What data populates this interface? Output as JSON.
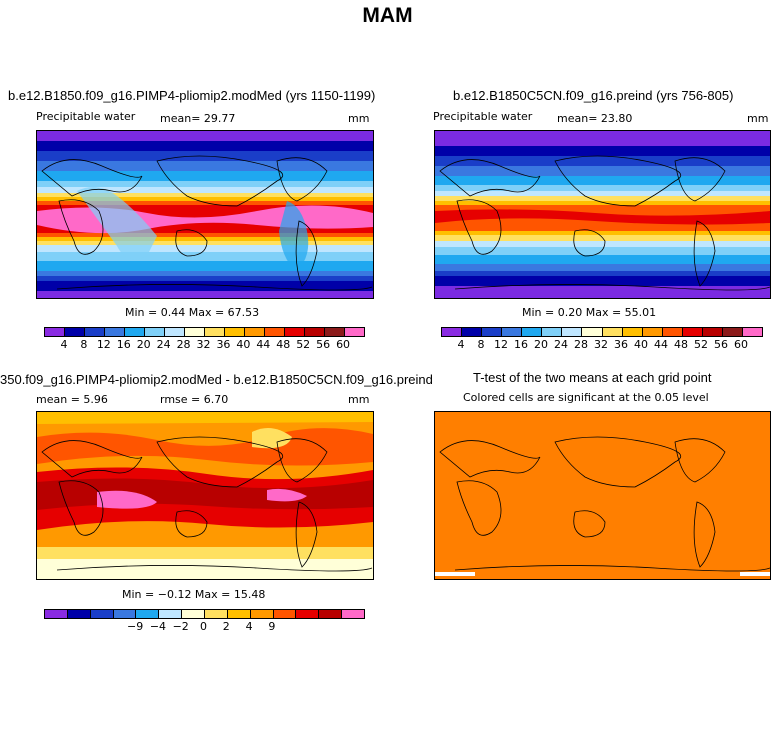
{
  "title": "MAM",
  "panels": {
    "top_left": {
      "title": "b.e12.B1850.f09_g16.PIMP4-pliomip2.modMed (yrs 1150-1199)",
      "variable": "Precipitable water",
      "mean": "mean=  29.77",
      "units": "mm",
      "minmax": "Min =    0.44  Max =   67.53"
    },
    "top_right": {
      "title": "b.e12.B1850C5CN.f09_g16.preind (yrs 756-805)",
      "variable": "Precipitable water",
      "mean": "mean=  23.80",
      "units": "mm",
      "minmax": "Min =    0.20  Max =   55.01"
    },
    "bottom_left": {
      "title": "350.f09_g16.PIMP4-pliomip2.modMed - b.e12.B1850C5CN.f09_g16.preind",
      "mean": "mean  =    5.96",
      "rmse": "rmse  =    6.70",
      "units": "mm",
      "minmax": "Min =   −0.12  Max =   15.48"
    },
    "bottom_right": {
      "title": "T-test of the two means at each grid point",
      "subtitle": "Colored cells are significant at the 0.05 level"
    }
  },
  "colorbar_abs": {
    "colors": [
      "#8a2be2",
      "#0000a8",
      "#1a3ec8",
      "#3a78e0",
      "#1fa8f0",
      "#7fd0f8",
      "#bfe6ff",
      "#ffffd8",
      "#ffe060",
      "#ffbf00",
      "#ff9900",
      "#ff5500",
      "#e60000",
      "#b80000",
      "#8b1a1a",
      "#ff69c8"
    ],
    "labels": [
      "4",
      "8",
      "12",
      "16",
      "20",
      "24",
      "28",
      "32",
      "36",
      "40",
      "44",
      "48",
      "52",
      "56",
      "60"
    ]
  },
  "colorbar_diff": {
    "colors": [
      "#8a2be2",
      "#0000a8",
      "#1a3ec8",
      "#3a78e0",
      "#1fa8f0",
      "#bfe6ff",
      "#ffffd8",
      "#ffe060",
      "#ffbf00",
      "#ff9900",
      "#ff5500",
      "#e60000",
      "#b80000",
      "#ff69c8"
    ],
    "labels": [
      "−9",
      "−4",
      "−2",
      "0",
      "2",
      "4",
      "9"
    ]
  },
  "ttest_color": "#ff7f00"
}
